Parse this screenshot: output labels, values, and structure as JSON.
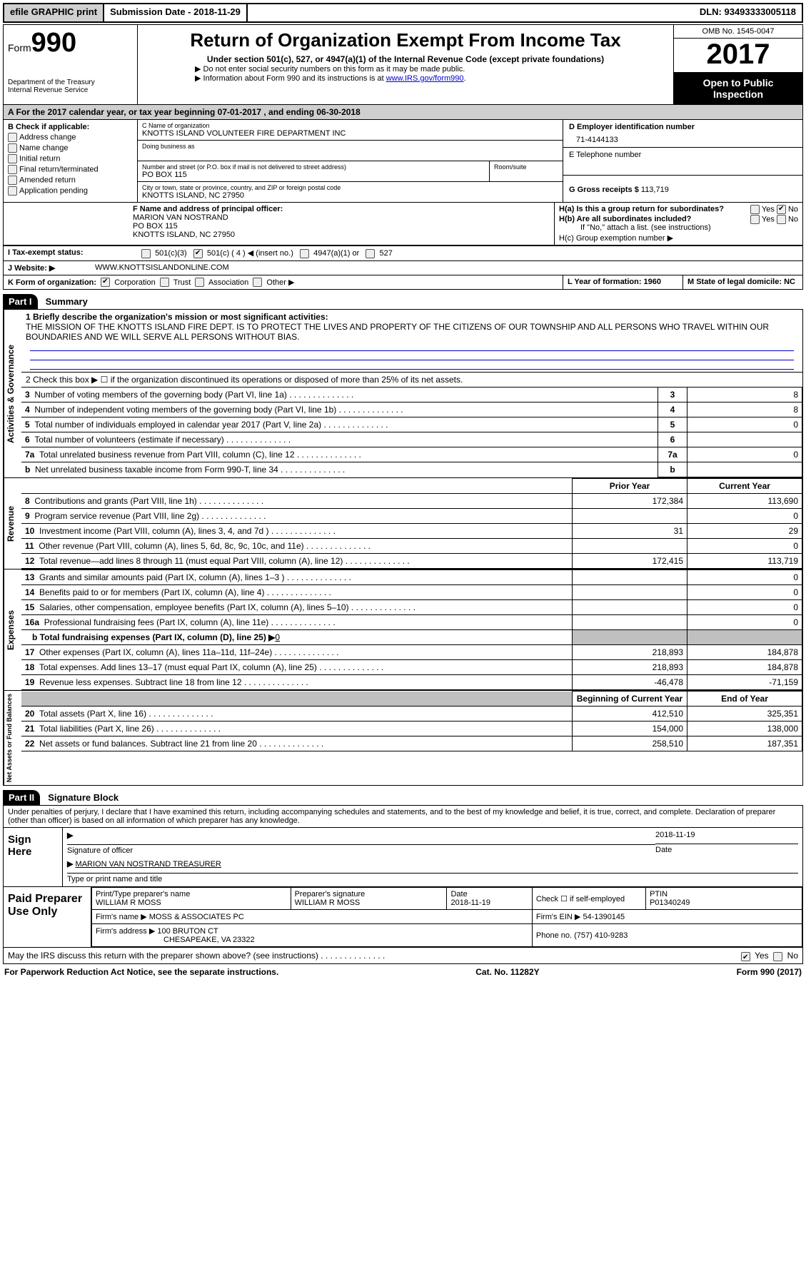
{
  "topbar": {
    "efile": "efile GRAPHIC print",
    "submission_label": "Submission Date - ",
    "submission_date": "2018-11-29",
    "dln_label": "DLN: ",
    "dln": "93493333005118"
  },
  "header": {
    "form_prefix": "Form",
    "form_number": "990",
    "dept1": "Department of the Treasury",
    "dept2": "Internal Revenue Service",
    "title": "Return of Organization Exempt From Income Tax",
    "subtitle": "Under section 501(c), 527, or 4947(a)(1) of the Internal Revenue Code (except private foundations)",
    "note1": "▶ Do not enter social security numbers on this form as it may be made public.",
    "note2_a": "▶ Information about Form 990 and its instructions is at ",
    "note2_link": "www.IRS.gov/form990",
    "note2_b": ".",
    "omb": "OMB No. 1545-0047",
    "year": "2017",
    "open1": "Open to Public",
    "open2": "Inspection"
  },
  "section_a": "A  For the 2017 calendar year, or tax year beginning 07-01-2017   , and ending 06-30-2018",
  "col_b": {
    "title": "B Check if applicable:",
    "items": [
      "Address change",
      "Name change",
      "Initial return",
      "Final return/terminated",
      "Amended return",
      "Application pending"
    ]
  },
  "col_c": {
    "name_label": "C Name of organization",
    "name": "KNOTTS ISLAND VOLUNTEER FIRE DEPARTMENT INC",
    "dba_label": "Doing business as",
    "street_label": "Number and street (or P.O. box if mail is not delivered to street address)",
    "room_label": "Room/suite",
    "street": "PO BOX 115",
    "city_label": "City or town, state or province, country, and ZIP or foreign postal code",
    "city": "KNOTTS ISLAND, NC  27950"
  },
  "col_d": {
    "ein_label": "D Employer identification number",
    "ein": "71-4144133",
    "phone_label": "E Telephone number",
    "gross_label": "G Gross receipts $ ",
    "gross": "113,719"
  },
  "row_f": {
    "label": "F Name and address of principal officer:",
    "name": "MARION VAN NOSTRAND",
    "addr1": "PO BOX 115",
    "addr2": "KNOTTS ISLAND, NC  27950"
  },
  "row_h": {
    "ha": "H(a)  Is this a group return for subordinates?",
    "hb": "H(b)  Are all subordinates included?",
    "hb_note": "If \"No,\" attach a list. (see instructions)",
    "hc": "H(c)  Group exemption number ▶",
    "yes": "Yes",
    "no": "No"
  },
  "row_i": {
    "label": "I  Tax-exempt status:",
    "opt1": "501(c)(3)",
    "opt2": "501(c) ( 4 ) ◀ (insert no.)",
    "opt3": "4947(a)(1) or",
    "opt4": "527"
  },
  "row_j": {
    "label": "J  Website: ▶",
    "value": "WWW.KNOTTSISLANDONLINE.COM"
  },
  "row_k": {
    "label": "K Form of organization:",
    "opts": [
      "Corporation",
      "Trust",
      "Association",
      "Other ▶"
    ],
    "l": "L Year of formation: 1960",
    "m": "M State of legal domicile: NC"
  },
  "part1": {
    "tag": "Part I",
    "title": "Summary",
    "l1_label": "1  Briefly describe the organization's mission or most significant activities:",
    "l1_text": "THE MISSION OF THE KNOTTS ISLAND FIRE DEPT. IS TO PROTECT THE LIVES AND PROPERTY OF THE CITIZENS OF OUR TOWNSHIP AND ALL PERSONS WHO TRAVEL WITHIN OUR BOUNDARIES AND WE WILL SERVE ALL PERSONS WITHOUT BIAS.",
    "l2": "2  Check this box ▶ ☐  if the organization discontinued its operations or disposed of more than 25% of its net assets.",
    "gov_lines": [
      {
        "n": "3",
        "d": "Number of voting members of the governing body (Part VI, line 1a)",
        "v": "8"
      },
      {
        "n": "4",
        "d": "Number of independent voting members of the governing body (Part VI, line 1b)",
        "v": "8"
      },
      {
        "n": "5",
        "d": "Total number of individuals employed in calendar year 2017 (Part V, line 2a)",
        "v": "0"
      },
      {
        "n": "6",
        "d": "Total number of volunteers (estimate if necessary)",
        "v": ""
      },
      {
        "n": "7a",
        "d": "Total unrelated business revenue from Part VIII, column (C), line 12",
        "v": "0"
      },
      {
        "n": "b",
        "d": "Net unrelated business taxable income from Form 990-T, line 34",
        "v": ""
      }
    ],
    "hdr_prior": "Prior Year",
    "hdr_current": "Current Year",
    "rev_lines": [
      {
        "n": "8",
        "d": "Contributions and grants (Part VIII, line 1h)",
        "p": "172,384",
        "c": "113,690"
      },
      {
        "n": "9",
        "d": "Program service revenue (Part VIII, line 2g)",
        "p": "",
        "c": "0"
      },
      {
        "n": "10",
        "d": "Investment income (Part VIII, column (A), lines 3, 4, and 7d )",
        "p": "31",
        "c": "29"
      },
      {
        "n": "11",
        "d": "Other revenue (Part VIII, column (A), lines 5, 6d, 8c, 9c, 10c, and 11e)",
        "p": "",
        "c": "0"
      },
      {
        "n": "12",
        "d": "Total revenue—add lines 8 through 11 (must equal Part VIII, column (A), line 12)",
        "p": "172,415",
        "c": "113,719"
      }
    ],
    "exp_lines": [
      {
        "n": "13",
        "d": "Grants and similar amounts paid (Part IX, column (A), lines 1–3 )",
        "p": "",
        "c": "0"
      },
      {
        "n": "14",
        "d": "Benefits paid to or for members (Part IX, column (A), line 4)",
        "p": "",
        "c": "0"
      },
      {
        "n": "15",
        "d": "Salaries, other compensation, employee benefits (Part IX, column (A), lines 5–10)",
        "p": "",
        "c": "0"
      },
      {
        "n": "16a",
        "d": "Professional fundraising fees (Part IX, column (A), line 11e)",
        "p": "",
        "c": "0"
      }
    ],
    "l16b": "b  Total fundraising expenses (Part IX, column (D), line 25) ▶",
    "l16b_val": "0",
    "exp_lines2": [
      {
        "n": "17",
        "d": "Other expenses (Part IX, column (A), lines 11a–11d, 11f–24e)",
        "p": "218,893",
        "c": "184,878"
      },
      {
        "n": "18",
        "d": "Total expenses. Add lines 13–17 (must equal Part IX, column (A), line 25)",
        "p": "218,893",
        "c": "184,878"
      },
      {
        "n": "19",
        "d": "Revenue less expenses. Subtract line 18 from line 12",
        "p": "-46,478",
        "c": "-71,159"
      }
    ],
    "hdr_boy": "Beginning of Current Year",
    "hdr_eoy": "End of Year",
    "na_lines": [
      {
        "n": "20",
        "d": "Total assets (Part X, line 16)",
        "p": "412,510",
        "c": "325,351"
      },
      {
        "n": "21",
        "d": "Total liabilities (Part X, line 26)",
        "p": "154,000",
        "c": "138,000"
      },
      {
        "n": "22",
        "d": "Net assets or fund balances. Subtract line 21 from line 20",
        "p": "258,510",
        "c": "187,351"
      }
    ],
    "vtab_gov": "Activities & Governance",
    "vtab_rev": "Revenue",
    "vtab_exp": "Expenses",
    "vtab_na": "Net Assets or Fund Balances"
  },
  "part2": {
    "tag": "Part II",
    "title": "Signature Block",
    "decl": "Under penalties of perjury, I declare that I have examined this return, including accompanying schedules and statements, and to the best of my knowledge and belief, it is true, correct, and complete. Declaration of preparer (other than officer) is based on all information of which preparer has any knowledge.",
    "sign_here": "Sign Here",
    "sig_officer": "Signature of officer",
    "date_lbl": "Date",
    "sig_date": "2018-11-19",
    "officer_name": "MARION VAN NOSTRAND TREASURER",
    "type_name": "Type or print name and title",
    "paid": "Paid Preparer Use Only",
    "prep_name_lbl": "Print/Type preparer's name",
    "prep_name": "WILLIAM R MOSS",
    "prep_sig_lbl": "Preparer's signature",
    "prep_sig": "WILLIAM R MOSS",
    "prep_date_lbl": "Date",
    "prep_date": "2018-11-19",
    "check_lbl": "Check ☐ if self-employed",
    "ptin_lbl": "PTIN",
    "ptin": "P01340249",
    "firm_name_lbl": "Firm's name    ▶",
    "firm_name": "MOSS & ASSOCIATES PC",
    "firm_ein_lbl": "Firm's EIN ▶",
    "firm_ein": "54-1390145",
    "firm_addr_lbl": "Firm's address ▶",
    "firm_addr1": "100 BRUTON CT",
    "firm_addr2": "CHESAPEAKE, VA  23322",
    "phone_lbl": "Phone no.",
    "phone": "(757) 410-9283",
    "discuss": "May the IRS discuss this return with the preparer shown above? (see instructions)",
    "yes": "Yes",
    "no": "No"
  },
  "footer": {
    "left": "For Paperwork Reduction Act Notice, see the separate instructions.",
    "mid": "Cat. No. 11282Y",
    "right": "Form 990 (2017)"
  }
}
